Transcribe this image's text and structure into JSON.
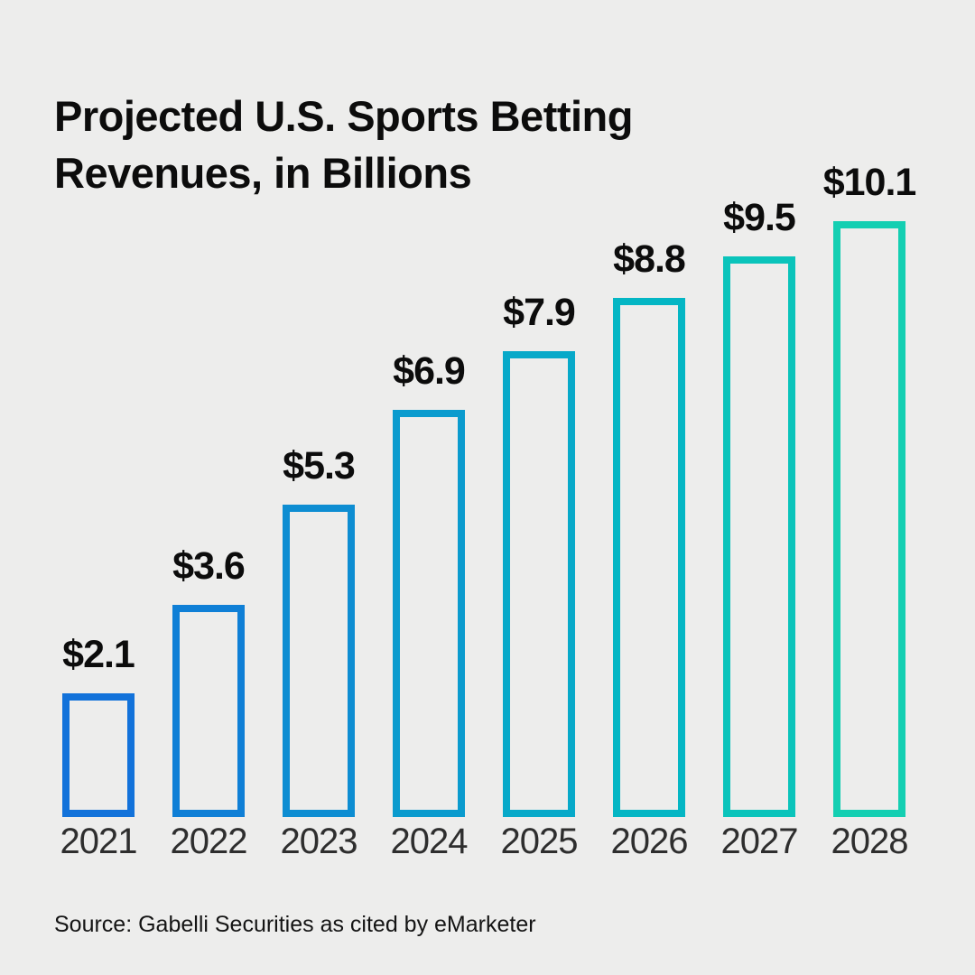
{
  "title": "Projected U.S. Sports Betting\nRevenues, in Billions",
  "source": "Source: Gabelli Securities as cited by eMarketer",
  "background_color": "#EDEDEC",
  "text_color": "#0C0C0C",
  "chart_data": {
    "type": "bar",
    "title": "Projected U.S. Sports Betting Revenues, in Billions",
    "categories": [
      "2021",
      "2022",
      "2023",
      "2024",
      "2025",
      "2026",
      "2027",
      "2028"
    ],
    "values": [
      2.1,
      3.6,
      5.3,
      6.9,
      7.9,
      8.8,
      9.5,
      10.1
    ],
    "value_labels": [
      "$2.1",
      "$3.6",
      "$5.3",
      "$6.9",
      "$7.9",
      "$8.8",
      "$9.5",
      "$10.1"
    ],
    "bar_colors": [
      "#1272DA",
      "#0F7FD6",
      "#0D8DD2",
      "#0A9BCE",
      "#07A9C9",
      "#04B6C4",
      "#0AC4BB",
      "#14CFB2"
    ],
    "bar_style": "outline",
    "ylabel": "",
    "xlabel": "",
    "ylim": [
      0,
      10.1
    ],
    "grid": false,
    "legend": false,
    "source": "Source: Gabelli Securities as cited by eMarketer"
  }
}
